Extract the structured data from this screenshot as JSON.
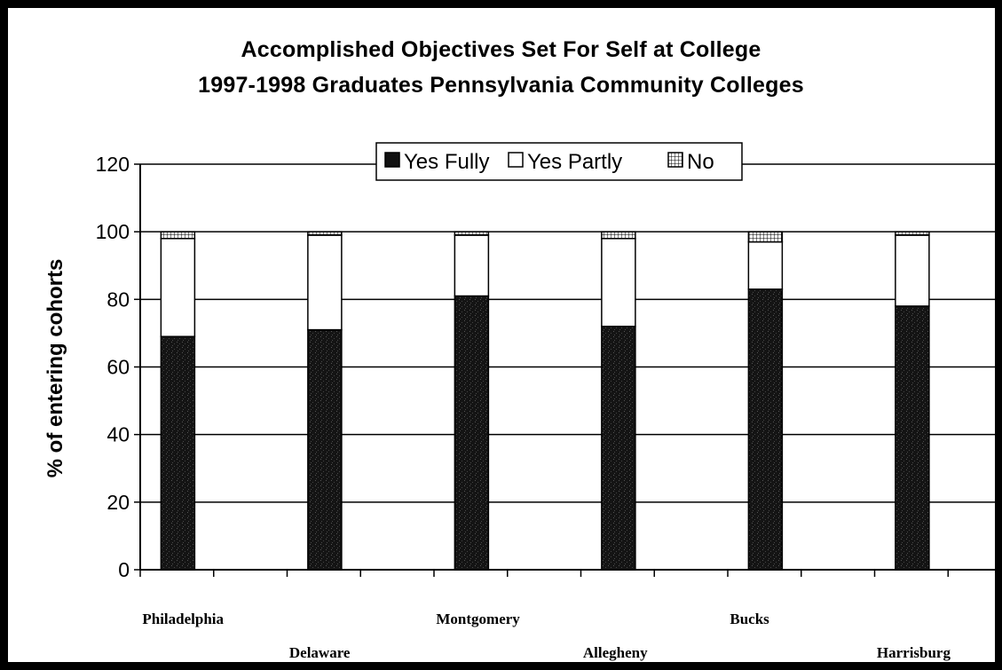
{
  "chart_data": {
    "type": "bar",
    "stacked": true,
    "title": "Accomplished Objectives Set For Self at College",
    "subtitle": "1997-1998 Graduates Pennsylvania Community Colleges",
    "ylabel": "% of entering cohorts",
    "xlabel": "",
    "ylim": [
      0,
      120
    ],
    "yticks": [
      "0",
      "20",
      "40",
      "60",
      "80",
      "100",
      "120"
    ],
    "grid": true,
    "legend_position": "top",
    "categories": [
      "Philadelphia",
      "Delaware",
      "Montgomery",
      "Allegheny",
      "Bucks",
      "Harrisburg"
    ],
    "series": [
      {
        "name": "Yes Fully",
        "values": [
          69,
          71,
          81,
          72,
          83,
          78
        ]
      },
      {
        "name": "Yes Partly",
        "values": [
          29,
          28,
          18,
          26,
          14,
          21
        ]
      },
      {
        "name": "No",
        "values": [
          2,
          1,
          1,
          2,
          3,
          1
        ]
      }
    ],
    "colors": {
      "fully": "#111111",
      "partly": "#ffffff",
      "no": "#ffffff",
      "edge": "#000000"
    }
  }
}
